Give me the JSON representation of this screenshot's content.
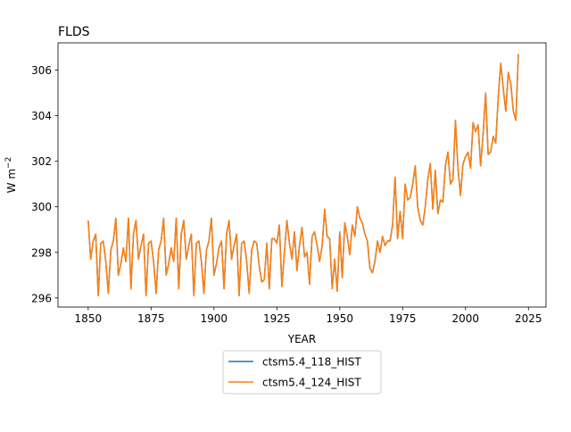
{
  "chart_data": {
    "type": "line",
    "title": "FLDS",
    "xlabel": "YEAR",
    "ylabel_main": "W m",
    "ylabel_sup": "−2",
    "xlim": [
      1838,
      2032
    ],
    "ylim": [
      295.6,
      307.2
    ],
    "xticks": [
      1850,
      1875,
      1900,
      1925,
      1950,
      1975,
      2000,
      2025
    ],
    "yticks": [
      296,
      298,
      300,
      302,
      304,
      306
    ],
    "grid": false,
    "legend_position": "bottom-center",
    "series": [
      {
        "name": "ctsm5.4_118_HIST",
        "color": "#1f77b4",
        "x_start": 1850,
        "values": [
          299.4,
          297.7,
          298.5,
          298.8,
          296.1,
          298.4,
          298.5,
          297.6,
          296.2,
          298.1,
          298.5,
          299.5,
          297.0,
          297.5,
          298.2,
          297.6,
          299.5,
          296.4,
          298.8,
          299.4,
          297.7,
          298.3,
          298.8,
          296.1,
          298.4,
          298.5,
          297.6,
          296.2,
          298.1,
          298.5,
          299.5,
          297.0,
          297.5,
          298.2,
          297.6,
          299.5,
          296.4,
          298.8,
          299.4,
          297.7,
          298.3,
          298.8,
          296.1,
          298.4,
          298.5,
          297.6,
          296.2,
          298.1,
          298.5,
          299.5,
          297.0,
          297.5,
          298.2,
          298.5,
          296.4,
          298.8,
          299.4,
          297.7,
          298.3,
          298.8,
          296.1,
          298.4,
          298.5,
          297.6,
          296.2,
          298.1,
          298.5,
          298.4,
          297.4,
          296.7,
          296.8,
          298.4,
          296.4,
          298.6,
          298.6,
          298.4,
          299.2,
          296.5,
          298.0,
          299.4,
          298.4,
          297.7,
          298.9,
          297.2,
          298.3,
          299.1,
          297.8,
          298.0,
          296.6,
          298.7,
          298.9,
          298.3,
          297.6,
          298.3,
          299.9,
          298.7,
          298.6,
          296.4,
          297.7,
          296.3,
          298.9,
          296.9,
          299.3,
          298.7,
          297.9,
          299.2,
          298.7,
          300.0,
          299.5,
          299.3,
          298.8,
          298.5,
          297.3,
          297.1,
          297.6,
          298.5,
          298.0,
          298.7,
          298.3,
          298.5,
          298.5,
          299.2,
          301.3,
          298.6,
          299.8,
          298.6,
          301.0,
          300.3,
          300.4,
          301.0,
          301.8,
          300.0,
          299.4,
          299.2,
          300.0,
          301.2,
          301.9,
          299.9,
          301.6,
          299.7,
          300.3,
          300.2,
          301.8,
          302.4,
          301.0,
          301.2,
          303.8,
          301.7,
          300.5,
          301.9,
          302.2,
          302.4,
          301.7,
          303.7,
          303.3,
          303.6,
          301.8,
          303.2,
          305.0,
          302.3,
          302.4,
          303.1,
          302.8,
          304.8,
          306.3,
          305.2,
          304.2,
          305.9,
          305.4,
          304.2,
          303.8,
          306.7
        ]
      },
      {
        "name": "ctsm5.4_124_HIST",
        "color": "#ff7f0e",
        "x_start": 1850,
        "values": [
          299.4,
          297.7,
          298.5,
          298.8,
          296.1,
          298.4,
          298.5,
          297.6,
          296.2,
          298.1,
          298.5,
          299.5,
          297.0,
          297.5,
          298.2,
          297.6,
          299.5,
          296.4,
          298.8,
          299.4,
          297.7,
          298.3,
          298.8,
          296.1,
          298.4,
          298.5,
          297.6,
          296.2,
          298.1,
          298.5,
          299.5,
          297.0,
          297.5,
          298.2,
          297.6,
          299.5,
          296.4,
          298.8,
          299.4,
          297.7,
          298.3,
          298.8,
          296.1,
          298.4,
          298.5,
          297.6,
          296.2,
          298.1,
          298.5,
          299.5,
          297.0,
          297.5,
          298.2,
          298.5,
          296.4,
          298.8,
          299.4,
          297.7,
          298.3,
          298.8,
          296.1,
          298.4,
          298.5,
          297.6,
          296.2,
          298.1,
          298.5,
          298.4,
          297.4,
          296.7,
          296.8,
          298.4,
          296.4,
          298.6,
          298.6,
          298.4,
          299.2,
          296.5,
          298.0,
          299.4,
          298.4,
          297.7,
          298.9,
          297.2,
          298.3,
          299.1,
          297.8,
          298.0,
          296.6,
          298.7,
          298.9,
          298.3,
          297.6,
          298.3,
          299.9,
          298.7,
          298.6,
          296.4,
          297.7,
          296.3,
          298.9,
          296.9,
          299.3,
          298.7,
          297.9,
          299.2,
          298.7,
          300.0,
          299.5,
          299.3,
          298.8,
          298.5,
          297.3,
          297.1,
          297.6,
          298.5,
          298.0,
          298.7,
          298.3,
          298.5,
          298.5,
          299.2,
          301.3,
          298.6,
          299.8,
          298.6,
          301.0,
          300.3,
          300.4,
          301.0,
          301.8,
          300.0,
          299.4,
          299.2,
          300.0,
          301.2,
          301.9,
          299.9,
          301.6,
          299.7,
          300.3,
          300.2,
          301.8,
          302.4,
          301.0,
          301.2,
          303.8,
          301.7,
          300.5,
          301.9,
          302.2,
          302.4,
          301.7,
          303.7,
          303.3,
          303.6,
          301.8,
          303.2,
          305.0,
          302.3,
          302.4,
          303.1,
          302.8,
          304.8,
          306.3,
          305.2,
          304.2,
          305.9,
          305.4,
          304.2,
          303.8,
          306.7
        ]
      }
    ]
  }
}
